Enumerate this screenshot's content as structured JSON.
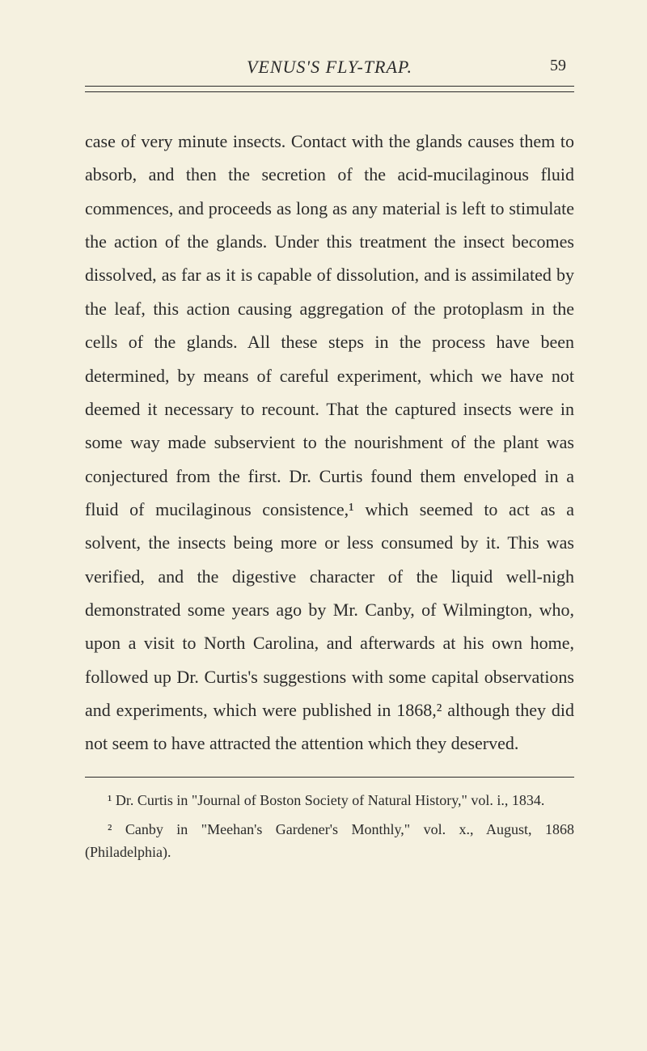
{
  "header": {
    "running_title": "VENUS'S FLY-TRAP.",
    "page_number": "59"
  },
  "body": {
    "paragraph": "case of very minute insects. Contact with the glands causes them to absorb, and then the secretion of the acid-mucilaginous fluid commences, and proceeds as long as any material is left to stimulate the action of the glands. Under this treatment the insect becomes dissolved, as far as it is capable of dissolution, and is assimilated by the leaf, this action causing aggregation of the protoplasm in the cells of the glands. All these steps in the process have been determined, by means of careful experiment, which we have not deemed it necessary to recount. That the captured insects were in some way made subservient to the nourishment of the plant was conjectured from the first. Dr. Curtis found them enveloped in a fluid of mucilaginous consistence,¹ which seemed to act as a solvent, the insects being more or less consumed by it. This was verified, and the digestive character of the liquid well-nigh demonstrated some years ago by Mr. Canby, of Wilmington, who, upon a visit to North Carolina, and afterwards at his own home, followed up Dr. Curtis's suggestions with some capital observations and experiments, which were published in 1868,² although they did not seem to have attracted the attention which they deserved."
  },
  "footnotes": {
    "note1": "¹ Dr. Curtis in \"Journal of Boston Society of Natural History,\" vol. i., 1834.",
    "note2": "² Canby in \"Meehan's Gardener's Monthly,\" vol. x., August, 1868 (Philadelphia)."
  },
  "colors": {
    "background": "#f5f1e0",
    "text": "#2a2a2a",
    "rule": "#2a2a2a"
  },
  "typography": {
    "body_fontsize": 22,
    "body_lineheight": 1.88,
    "footnote_fontsize": 18,
    "footnote_lineheight": 1.55,
    "header_fontsize": 22,
    "pagenum_fontsize": 20
  }
}
